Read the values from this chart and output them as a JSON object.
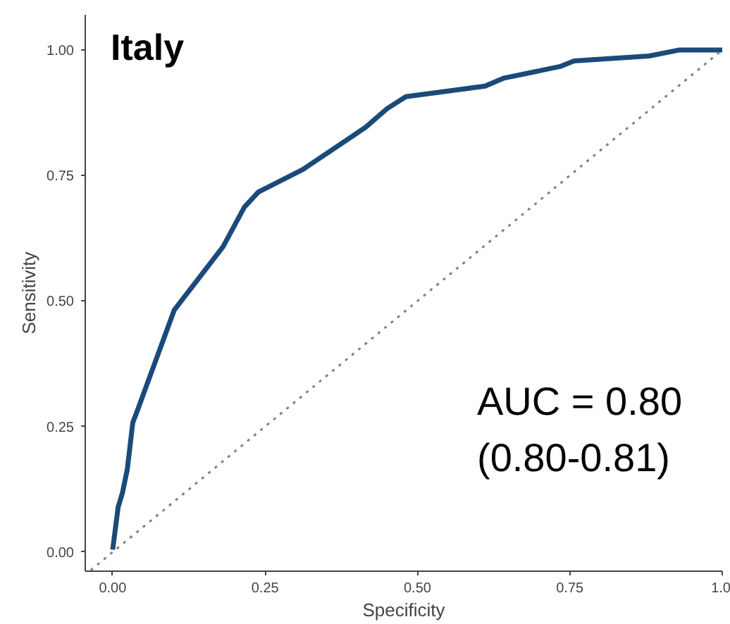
{
  "chart_data": {
    "type": "line",
    "title": "Italy",
    "xlabel": "Specificity",
    "ylabel": "Sensitivity",
    "xlim": [
      -0.045,
      1.0
    ],
    "ylim": [
      -0.038,
      1.07
    ],
    "xticks": [
      {
        "value": 0,
        "label": "0.00"
      },
      {
        "value": 0.25,
        "label": "0.25"
      },
      {
        "value": 0.5,
        "label": "0.50"
      },
      {
        "value": 0.75,
        "label": "0.75"
      },
      {
        "value": 1,
        "label": "1.0"
      }
    ],
    "yticks": [
      {
        "value": 0,
        "label": "0.00"
      },
      {
        "value": 0.25,
        "label": "0.25"
      },
      {
        "value": 0.5,
        "label": "0.50"
      },
      {
        "value": 0.75,
        "label": "0.75"
      },
      {
        "value": 1,
        "label": "1.00"
      }
    ],
    "grid": false,
    "series": [
      {
        "color": "#1a4a7a",
        "line_style": "solid",
        "x": [
          0.0,
          0.009,
          0.016,
          0.024,
          0.033,
          0.039,
          0.101,
          0.181,
          0.216,
          0.239,
          0.312,
          0.415,
          0.45,
          0.481,
          0.611,
          0.642,
          0.734,
          0.757,
          0.88,
          0.93,
          1.0
        ],
        "values": [
          0.005,
          0.09,
          0.118,
          0.165,
          0.258,
          0.277,
          0.482,
          0.608,
          0.687,
          0.717,
          0.762,
          0.846,
          0.883,
          0.907,
          0.928,
          0.944,
          0.967,
          0.978,
          0.988,
          1.0,
          1.0
        ]
      },
      {
        "color": "#808080",
        "line_style": "dotted",
        "x": [
          -0.036,
          1.0
        ],
        "values": [
          -0.036,
          1.0
        ]
      }
    ],
    "annotations": [
      "AUC = 0.80",
      "(0.80-0.81)"
    ]
  }
}
